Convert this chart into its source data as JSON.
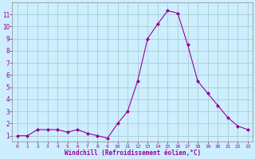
{
  "x": [
    0,
    1,
    2,
    3,
    4,
    5,
    6,
    7,
    8,
    9,
    10,
    11,
    12,
    13,
    14,
    15,
    16,
    17,
    18,
    19,
    20,
    21,
    22,
    23
  ],
  "y": [
    1.0,
    1.0,
    1.5,
    1.5,
    1.5,
    1.3,
    1.5,
    1.2,
    1.0,
    0.8,
    2.0,
    3.0,
    5.5,
    9.0,
    10.2,
    11.3,
    11.1,
    8.5,
    5.5,
    4.5,
    3.5,
    2.5,
    1.8,
    1.5
  ],
  "line_color": "#990099",
  "marker": "D",
  "marker_size": 2.0,
  "bg_color": "#cceeff",
  "grid_color": "#aacccc",
  "xlabel": "Windchill (Refroidissement éolien,°C)",
  "xlabel_color": "#990099",
  "tick_color": "#990099",
  "ylim": [
    0.5,
    12
  ],
  "xlim": [
    -0.5,
    23.5
  ],
  "yticks": [
    1,
    2,
    3,
    4,
    5,
    6,
    7,
    8,
    9,
    10,
    11
  ],
  "xticks": [
    0,
    1,
    2,
    3,
    4,
    5,
    6,
    7,
    8,
    9,
    10,
    11,
    12,
    13,
    14,
    15,
    16,
    17,
    18,
    19,
    20,
    21,
    22,
    23
  ]
}
